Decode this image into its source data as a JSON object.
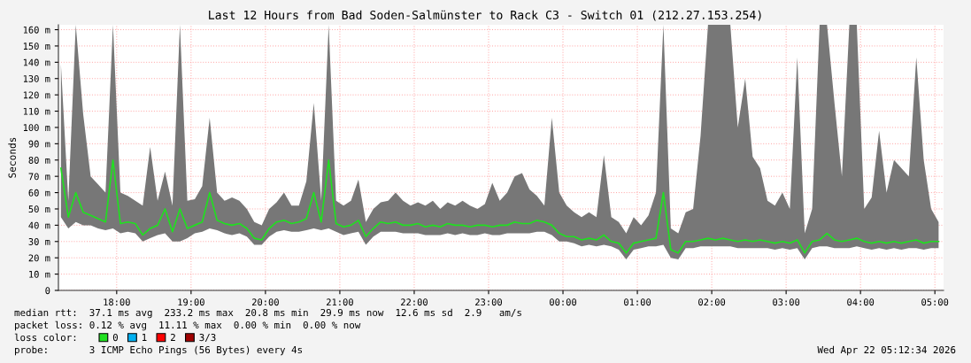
{
  "chart_data": {
    "type": "line",
    "title": "Last 12 Hours from Bad Soden-Salmünster to Rack C3 - Switch 01 (212.27.153.254)",
    "ylabel": "Seconds",
    "x": [
      "2026-04-21T17:15",
      "2026-04-21T17:21",
      "2026-04-21T17:27",
      "2026-04-21T17:33",
      "2026-04-21T17:39",
      "2026-04-21T17:45",
      "2026-04-21T17:51",
      "2026-04-21T17:57",
      "2026-04-21T18:03",
      "2026-04-21T18:09",
      "2026-04-21T18:15",
      "2026-04-21T18:21",
      "2026-04-21T18:27",
      "2026-04-21T18:33",
      "2026-04-21T18:39",
      "2026-04-21T18:45",
      "2026-04-21T18:51",
      "2026-04-21T18:57",
      "2026-04-21T19:03",
      "2026-04-21T19:09",
      "2026-04-21T19:15",
      "2026-04-21T19:21",
      "2026-04-21T19:27",
      "2026-04-21T19:33",
      "2026-04-21T19:39",
      "2026-04-21T19:45",
      "2026-04-21T19:51",
      "2026-04-21T19:57",
      "2026-04-21T20:03",
      "2026-04-21T20:09",
      "2026-04-21T20:15",
      "2026-04-21T20:21",
      "2026-04-21T20:27",
      "2026-04-21T20:33",
      "2026-04-21T20:39",
      "2026-04-21T20:45",
      "2026-04-21T20:51",
      "2026-04-21T20:57",
      "2026-04-21T21:03",
      "2026-04-21T21:09",
      "2026-04-21T21:15",
      "2026-04-21T21:21",
      "2026-04-21T21:27",
      "2026-04-21T21:33",
      "2026-04-21T21:39",
      "2026-04-21T21:45",
      "2026-04-21T21:51",
      "2026-04-21T21:57",
      "2026-04-21T22:03",
      "2026-04-21T22:09",
      "2026-04-21T22:15",
      "2026-04-21T22:21",
      "2026-04-21T22:27",
      "2026-04-21T22:33",
      "2026-04-21T22:39",
      "2026-04-21T22:45",
      "2026-04-21T22:51",
      "2026-04-21T22:57",
      "2026-04-21T23:03",
      "2026-04-21T23:09",
      "2026-04-21T23:15",
      "2026-04-21T23:21",
      "2026-04-21T23:27",
      "2026-04-21T23:33",
      "2026-04-21T23:39",
      "2026-04-21T23:45",
      "2026-04-21T23:51",
      "2026-04-21T23:57",
      "2026-04-22T00:03",
      "2026-04-22T00:09",
      "2026-04-22T00:15",
      "2026-04-22T00:21",
      "2026-04-22T00:27",
      "2026-04-22T00:33",
      "2026-04-22T00:39",
      "2026-04-22T00:45",
      "2026-04-22T00:51",
      "2026-04-22T00:57",
      "2026-04-22T01:03",
      "2026-04-22T01:09",
      "2026-04-22T01:15",
      "2026-04-22T01:21",
      "2026-04-22T01:27",
      "2026-04-22T01:33",
      "2026-04-22T01:39",
      "2026-04-22T01:45",
      "2026-04-22T01:51",
      "2026-04-22T01:57",
      "2026-04-22T02:03",
      "2026-04-22T02:09",
      "2026-04-22T02:15",
      "2026-04-22T02:21",
      "2026-04-22T02:27",
      "2026-04-22T02:33",
      "2026-04-22T02:39",
      "2026-04-22T02:45",
      "2026-04-22T02:51",
      "2026-04-22T02:57",
      "2026-04-22T03:03",
      "2026-04-22T03:09",
      "2026-04-22T03:15",
      "2026-04-22T03:21",
      "2026-04-22T03:27",
      "2026-04-22T03:33",
      "2026-04-22T03:39",
      "2026-04-22T03:45",
      "2026-04-22T03:51",
      "2026-04-22T03:57",
      "2026-04-22T04:03",
      "2026-04-22T04:09",
      "2026-04-22T04:15",
      "2026-04-22T04:21",
      "2026-04-22T04:27",
      "2026-04-22T04:33",
      "2026-04-22T04:39",
      "2026-04-22T04:45",
      "2026-04-22T04:51",
      "2026-04-22T04:57",
      "2026-04-22T05:03"
    ],
    "series": [
      {
        "name": "0",
        "color": "#20e020",
        "values": [
          75,
          45,
          60,
          48,
          46,
          44,
          42,
          80,
          41,
          42,
          41,
          34,
          38,
          40,
          50,
          36,
          50,
          38,
          40,
          42,
          60,
          43,
          41,
          40,
          41,
          38,
          32,
          31,
          38,
          42,
          43,
          41,
          42,
          44,
          60,
          42,
          80,
          41,
          39,
          40,
          43,
          33,
          38,
          42,
          41,
          42,
          40,
          40,
          41,
          39,
          40,
          39,
          41,
          40,
          40,
          39,
          40,
          40,
          39,
          40,
          40,
          42,
          41,
          41,
          43,
          42,
          40,
          35,
          33,
          33,
          31,
          32,
          31,
          34,
          30,
          29,
          23,
          29,
          30,
          31,
          32,
          60,
          25,
          23,
          30,
          30,
          31,
          32,
          31,
          32,
          31,
          30,
          31,
          30,
          31,
          30,
          29,
          30,
          29,
          31,
          23,
          30,
          31,
          35,
          31,
          30,
          31,
          32,
          30,
          29,
          30,
          29,
          30,
          29,
          30,
          31,
          29,
          30,
          30
        ],
        "lower": [
          45,
          38,
          42,
          40,
          40,
          38,
          37,
          38,
          35,
          36,
          35,
          30,
          32,
          34,
          35,
          30,
          30,
          32,
          35,
          36,
          38,
          37,
          35,
          34,
          35,
          33,
          28,
          28,
          33,
          36,
          37,
          36,
          36,
          37,
          38,
          37,
          38,
          36,
          34,
          35,
          36,
          28,
          33,
          36,
          36,
          36,
          35,
          35,
          35,
          34,
          34,
          34,
          35,
          34,
          35,
          34,
          34,
          35,
          34,
          34,
          35,
          35,
          35,
          35,
          36,
          36,
          34,
          30,
          30,
          29,
          27,
          28,
          27,
          28,
          27,
          25,
          19,
          25,
          26,
          27,
          27,
          28,
          20,
          19,
          26,
          26,
          27,
          27,
          27,
          27,
          27,
          26,
          26,
          26,
          26,
          26,
          25,
          26,
          25,
          26,
          19,
          26,
          27,
          27,
          26,
          26,
          26,
          27,
          26,
          25,
          26,
          25,
          26,
          25,
          26,
          26,
          25,
          26,
          26
        ],
        "upper": [
          139,
          55,
          163,
          108,
          70,
          65,
          60,
          163,
          60,
          58,
          55,
          52,
          88,
          55,
          73,
          52,
          163,
          55,
          56,
          64,
          106,
          60,
          55,
          57,
          55,
          50,
          42,
          40,
          50,
          54,
          60,
          52,
          52,
          67,
          115,
          55,
          163,
          55,
          52,
          55,
          68,
          42,
          50,
          54,
          55,
          60,
          55,
          52,
          54,
          52,
          55,
          50,
          54,
          52,
          55,
          52,
          50,
          53,
          66,
          55,
          60,
          70,
          72,
          62,
          58,
          52,
          106,
          60,
          52,
          48,
          45,
          48,
          45,
          83,
          45,
          42,
          35,
          45,
          40,
          46,
          60,
          163,
          38,
          35,
          48,
          50,
          95,
          163,
          163,
          163,
          163,
          100,
          130,
          82,
          75,
          55,
          52,
          60,
          50,
          143,
          35,
          50,
          163,
          163,
          115,
          70,
          163,
          163,
          50,
          57,
          98,
          60,
          80,
          75,
          70,
          143,
          80,
          50,
          42
        ]
      },
      {
        "name": "1",
        "color": "#00b0f0",
        "values": [
          null,
          null,
          null,
          null,
          null,
          null,
          null,
          null,
          null,
          null,
          null,
          null,
          null,
          null,
          null,
          null,
          null,
          null,
          null,
          null,
          null,
          null,
          null,
          null,
          null,
          null,
          null,
          null,
          null,
          null,
          null,
          null,
          null,
          null,
          null,
          null,
          null,
          null,
          null,
          null,
          null,
          null,
          null,
          null,
          null,
          null,
          null,
          null,
          null,
          null,
          null,
          null,
          null,
          null,
          null,
          null,
          null,
          null,
          null,
          null,
          null,
          null,
          null,
          null,
          null,
          null,
          null,
          null,
          null,
          null,
          null,
          null,
          null,
          null,
          null,
          null,
          null,
          null,
          null,
          null,
          null,
          null,
          null,
          null,
          null,
          null,
          null,
          null,
          null,
          null,
          null,
          null,
          null,
          null,
          null,
          null,
          null,
          null,
          null,
          null,
          null,
          null,
          null,
          null,
          null,
          null,
          null,
          null,
          null,
          null,
          null,
          null,
          null,
          null,
          null,
          null,
          null,
          null,
          null
        ]
      },
      {
        "name": "2",
        "color": "#ff0000",
        "values": [
          null,
          null,
          null,
          null,
          null,
          null,
          null,
          null,
          null,
          null,
          null,
          null,
          null,
          null,
          null,
          null,
          null,
          null,
          null,
          null,
          null,
          null,
          null,
          null,
          null,
          null,
          null,
          null,
          null,
          null,
          null,
          null,
          null,
          null,
          null,
          null,
          null,
          null,
          null,
          null,
          null,
          null,
          null,
          null,
          null,
          null,
          null,
          null,
          null,
          null,
          null,
          null,
          null,
          null,
          null,
          null,
          null,
          null,
          null,
          null,
          null,
          null,
          null,
          null,
          null,
          null,
          null,
          null,
          null,
          null,
          null,
          null,
          null,
          null,
          null,
          null,
          null,
          null,
          null,
          null,
          null,
          null,
          null,
          null,
          null,
          null,
          null,
          null,
          null,
          null,
          null,
          null,
          null,
          null,
          null,
          null,
          null,
          null,
          null,
          null,
          null,
          null,
          null,
          null,
          null,
          null,
          null,
          null,
          null,
          null,
          null,
          null,
          null,
          null,
          null,
          null,
          null,
          null,
          null
        ]
      },
      {
        "name": "3/3",
        "color": "#a00000",
        "values": [
          null,
          null,
          null,
          null,
          null,
          null,
          null,
          null,
          null,
          null,
          null,
          null,
          null,
          null,
          null,
          null,
          null,
          null,
          null,
          null,
          null,
          null,
          null,
          null,
          null,
          null,
          null,
          null,
          null,
          null,
          null,
          null,
          null,
          null,
          null,
          null,
          null,
          null,
          null,
          null,
          null,
          null,
          null,
          null,
          null,
          null,
          null,
          null,
          null,
          null,
          null,
          null,
          null,
          null,
          null,
          null,
          null,
          null,
          null,
          null,
          null,
          null,
          null,
          null,
          null,
          null,
          null,
          null,
          null,
          null,
          null,
          null,
          null,
          null,
          null,
          null,
          null,
          null,
          null,
          null,
          null,
          null,
          null,
          null,
          null,
          null,
          null,
          null,
          null,
          null,
          null,
          null,
          null,
          null,
          null,
          null,
          null,
          null,
          null,
          null,
          null,
          null,
          null,
          null,
          null,
          null,
          null,
          null,
          null,
          null,
          null,
          null,
          null,
          null,
          null,
          null,
          null,
          null,
          null
        ]
      }
    ],
    "xlim": [
      "2026-04-21T17:13",
      "2026-04-22T05:07"
    ],
    "xticks": [
      {
        "value": "2026-04-21T18:00",
        "label": "18:00"
      },
      {
        "value": "2026-04-21T19:00",
        "label": "19:00"
      },
      {
        "value": "2026-04-21T20:00",
        "label": "20:00"
      },
      {
        "value": "2026-04-21T21:00",
        "label": "21:00"
      },
      {
        "value": "2026-04-21T22:00",
        "label": "22:00"
      },
      {
        "value": "2026-04-21T23:00",
        "label": "23:00"
      },
      {
        "value": "2026-04-22T00:00",
        "label": "00:00"
      },
      {
        "value": "2026-04-22T01:00",
        "label": "01:00"
      },
      {
        "value": "2026-04-22T02:00",
        "label": "02:00"
      },
      {
        "value": "2026-04-22T03:00",
        "label": "03:00"
      },
      {
        "value": "2026-04-22T04:00",
        "label": "04:00"
      },
      {
        "value": "2026-04-22T05:00",
        "label": "05:00"
      }
    ],
    "ylim": [
      0,
      163
    ],
    "yticks": [
      0,
      {
        "value": 10,
        "label": "10 m"
      },
      {
        "value": 20,
        "label": "20 m"
      },
      {
        "value": 30,
        "label": "30 m"
      },
      {
        "value": 40,
        "label": "40 m"
      },
      {
        "value": 50,
        "label": "50 m"
      },
      {
        "value": 60,
        "label": "60 m"
      },
      {
        "value": 70,
        "label": "70 m"
      },
      {
        "value": 80,
        "label": "80 m"
      },
      {
        "value": 90,
        "label": "90 m"
      },
      {
        "value": 100,
        "label": "100 m"
      },
      {
        "value": 110,
        "label": "110 m"
      },
      {
        "value": 120,
        "label": "120 m"
      },
      {
        "value": 130,
        "label": "130 m"
      },
      {
        "value": 140,
        "label": "140 m"
      },
      {
        "value": 150,
        "label": "150 m"
      },
      {
        "value": 160,
        "label": "160 m"
      }
    ],
    "grid": true,
    "legend": "bottom left",
    "legend_title": "loss color:",
    "annotations": [
      "median rtt:  37.1 ms avg  233.2 ms max  20.8 ms min  29.9 ms now  12.6 ms sd  2.9   am/s",
      "packet loss: 0.12 % avg  11.11 % max  0.00 % min  0.00 % now",
      "probe:       3 ICMP Echo Pings (56 Bytes) every 4s",
      "Wed Apr 22 05:12:34 2026"
    ]
  }
}
